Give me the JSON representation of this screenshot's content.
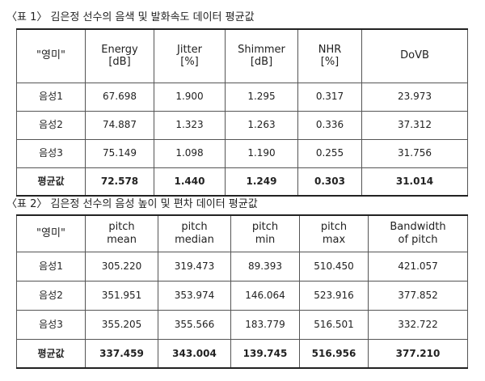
{
  "tables": [
    {
      "caption": "〈표 1〉 김은정 선수의 음색 및 발화속도 데이터 평균값",
      "header": [
        "\"영미\"",
        "Energy\n[dB]",
        "Jitter\n[%]",
        "Shimmer\n[dB]",
        "NHR\n[%]",
        "DoVB"
      ],
      "rows": [
        [
          "음성1",
          "67.698",
          "1.900",
          "1.295",
          "0.317",
          "23.973"
        ],
        [
          "음성2",
          "74.887",
          "1.323",
          "1.263",
          "0.336",
          "37.312"
        ],
        [
          "음성3",
          "75.149",
          "1.098",
          "1.190",
          "0.255",
          "31.756"
        ],
        [
          "평균값",
          "72.578",
          "1.440",
          "1.249",
          "0.303",
          "31.014"
        ]
      ]
    },
    {
      "caption": "〈표 2〉 김은정 선수의 음성 높이 및 편차 데이터 평균값",
      "header": [
        "\"영미\"",
        "pitch\nmean",
        "pitch\nmedian",
        "pitch\nmin",
        "pitch\nmax",
        "Bandwidth\nof pitch"
      ],
      "rows": [
        [
          "음성1",
          "305.220",
          "319.473",
          "89.393",
          "510.450",
          "421.057"
        ],
        [
          "음성2",
          "351.951",
          "353.974",
          "146.064",
          "523.916",
          "377.852"
        ],
        [
          "음성3",
          "355.205",
          "355.566",
          "183.779",
          "516.501",
          "332.722"
        ],
        [
          "평균값",
          "337.459",
          "343.004",
          "139.745",
          "516.956",
          "377.210"
        ]
      ]
    }
  ]
}
